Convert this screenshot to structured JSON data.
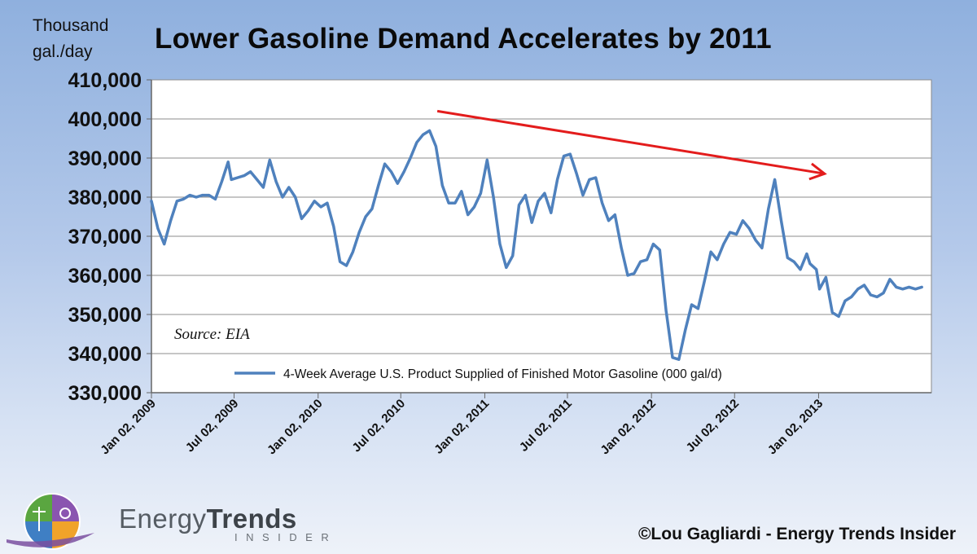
{
  "chart_data": {
    "type": "line",
    "title": "Lower Gasoline  Demand  Accelerates by 2011",
    "ylabel_lines": [
      "Thousand",
      "gal./day"
    ],
    "xlabel": "",
    "ylim": [
      330000,
      410000
    ],
    "yticks": [
      "410,000",
      "400,000",
      "390,000",
      "380,000",
      "370,000",
      "360,000",
      "350,000",
      "340,000",
      "330,000"
    ],
    "ytick_values": [
      410000,
      400000,
      390000,
      380000,
      370000,
      360000,
      350000,
      340000,
      330000
    ],
    "x_start": "2009-01-02",
    "x_end": "2013-09-06",
    "xticks": [
      "Jan 02, 2009",
      "Jul 02, 2009",
      "Jan 02, 2010",
      "Jul 02, 2010",
      "Jan 02, 2011",
      "Jul 02, 2011",
      "Jan 02, 2012",
      "Jul 02, 2012",
      "Jan 02, 2013"
    ],
    "xtick_dates": [
      "2009-01-02",
      "2009-07-02",
      "2010-01-02",
      "2010-07-02",
      "2011-01-02",
      "2011-07-02",
      "2012-01-02",
      "2012-07-02",
      "2013-01-02"
    ],
    "grid": true,
    "legend": "bottom-center, inside plot",
    "annotation": "Source: EIA",
    "trend_arrow": {
      "color": "#e31c1c",
      "from": {
        "x": "2010-09-20",
        "y": 402000
      },
      "to": {
        "x": "2013-01-15",
        "y": 386000
      }
    },
    "series": [
      {
        "name": "4-Week Average U.S. Product Supplied of Finished Motor Gasoline  (000 gal/d)",
        "color": "#4f81bd",
        "points": [
          [
            "2009-01-02",
            379000
          ],
          [
            "2009-01-16",
            372000
          ],
          [
            "2009-01-30",
            368000
          ],
          [
            "2009-02-13",
            374000
          ],
          [
            "2009-02-27",
            379000
          ],
          [
            "2009-03-13",
            379500
          ],
          [
            "2009-03-27",
            380500
          ],
          [
            "2009-04-10",
            380000
          ],
          [
            "2009-04-24",
            380500
          ],
          [
            "2009-05-08",
            380500
          ],
          [
            "2009-05-22",
            379500
          ],
          [
            "2009-06-05",
            384000
          ],
          [
            "2009-06-19",
            389000
          ],
          [
            "2009-06-26",
            384500
          ],
          [
            "2009-07-10",
            385000
          ],
          [
            "2009-07-24",
            385500
          ],
          [
            "2009-08-07",
            386500
          ],
          [
            "2009-08-21",
            384500
          ],
          [
            "2009-09-04",
            382500
          ],
          [
            "2009-09-18",
            389500
          ],
          [
            "2009-10-02",
            384000
          ],
          [
            "2009-10-16",
            380000
          ],
          [
            "2009-10-30",
            382500
          ],
          [
            "2009-11-13",
            380000
          ],
          [
            "2009-11-27",
            374500
          ],
          [
            "2009-12-11",
            376500
          ],
          [
            "2009-12-25",
            379000
          ],
          [
            "2010-01-08",
            377500
          ],
          [
            "2010-01-22",
            378500
          ],
          [
            "2010-02-05",
            372500
          ],
          [
            "2010-02-19",
            363500
          ],
          [
            "2010-03-05",
            362500
          ],
          [
            "2010-03-19",
            366000
          ],
          [
            "2010-04-02",
            371000
          ],
          [
            "2010-04-16",
            375000
          ],
          [
            "2010-04-30",
            377000
          ],
          [
            "2010-05-14",
            383000
          ],
          [
            "2010-05-28",
            388500
          ],
          [
            "2010-06-11",
            386500
          ],
          [
            "2010-06-25",
            383500
          ],
          [
            "2010-07-09",
            386500
          ],
          [
            "2010-07-23",
            390000
          ],
          [
            "2010-08-06",
            394000
          ],
          [
            "2010-08-20",
            396000
          ],
          [
            "2010-09-03",
            397000
          ],
          [
            "2010-09-17",
            393000
          ],
          [
            "2010-10-01",
            383000
          ],
          [
            "2010-10-15",
            378500
          ],
          [
            "2010-10-29",
            378500
          ],
          [
            "2010-11-12",
            381500
          ],
          [
            "2010-11-26",
            375500
          ],
          [
            "2010-12-10",
            377500
          ],
          [
            "2010-12-24",
            381000
          ],
          [
            "2011-01-07",
            389500
          ],
          [
            "2011-01-21",
            380000
          ],
          [
            "2011-02-04",
            368000
          ],
          [
            "2011-02-18",
            362000
          ],
          [
            "2011-03-04",
            365000
          ],
          [
            "2011-03-18",
            378000
          ],
          [
            "2011-04-01",
            380500
          ],
          [
            "2011-04-15",
            373500
          ],
          [
            "2011-04-29",
            379000
          ],
          [
            "2011-05-13",
            381000
          ],
          [
            "2011-05-27",
            376000
          ],
          [
            "2011-06-10",
            384500
          ],
          [
            "2011-06-24",
            390500
          ],
          [
            "2011-07-08",
            391000
          ],
          [
            "2011-07-22",
            386000
          ],
          [
            "2011-08-05",
            380500
          ],
          [
            "2011-08-19",
            384500
          ],
          [
            "2011-09-02",
            385000
          ],
          [
            "2011-09-16",
            378500
          ],
          [
            "2011-09-30",
            374000
          ],
          [
            "2011-10-14",
            375500
          ],
          [
            "2011-10-28",
            367000
          ],
          [
            "2011-11-11",
            360000
          ],
          [
            "2011-11-25",
            360500
          ],
          [
            "2011-12-09",
            363500
          ],
          [
            "2011-12-23",
            364000
          ],
          [
            "2012-01-06",
            368000
          ],
          [
            "2012-01-20",
            366500
          ],
          [
            "2012-02-03",
            351000
          ],
          [
            "2012-02-17",
            339000
          ],
          [
            "2012-03-02",
            338500
          ],
          [
            "2012-03-16",
            346000
          ],
          [
            "2012-03-30",
            352500
          ],
          [
            "2012-04-13",
            351500
          ],
          [
            "2012-04-27",
            358500
          ],
          [
            "2012-05-11",
            366000
          ],
          [
            "2012-05-25",
            364000
          ],
          [
            "2012-06-08",
            368000
          ],
          [
            "2012-06-22",
            371000
          ],
          [
            "2012-07-06",
            370500
          ],
          [
            "2012-07-20",
            374000
          ],
          [
            "2012-08-03",
            372000
          ],
          [
            "2012-08-17",
            369000
          ],
          [
            "2012-08-31",
            367000
          ],
          [
            "2012-09-14",
            377000
          ],
          [
            "2012-09-28",
            384500
          ],
          [
            "2012-10-12",
            374000
          ],
          [
            "2012-10-26",
            364500
          ],
          [
            "2012-11-09",
            363500
          ],
          [
            "2012-11-23",
            361500
          ],
          [
            "2012-12-07",
            365500
          ],
          [
            "2012-12-14",
            363000
          ],
          [
            "2012-12-28",
            361500
          ],
          [
            "2013-01-04",
            356500
          ],
          [
            "2013-01-18",
            359500
          ],
          [
            "2013-02-01",
            350500
          ],
          [
            "2013-02-15",
            349500
          ],
          [
            "2013-03-01",
            353500
          ],
          [
            "2013-03-15",
            354500
          ],
          [
            "2013-03-29",
            356500
          ],
          [
            "2013-04-12",
            357500
          ],
          [
            "2013-04-26",
            355000
          ],
          [
            "2013-05-10",
            354500
          ],
          [
            "2013-05-24",
            355500
          ],
          [
            "2013-06-07",
            359000
          ],
          [
            "2013-06-21",
            357000
          ],
          [
            "2013-07-05",
            356500
          ],
          [
            "2013-07-19",
            357000
          ],
          [
            "2013-08-02",
            356500
          ],
          [
            "2013-08-16",
            357000
          ]
        ]
      }
    ]
  },
  "brand": {
    "word_regular": "Energy",
    "word_bold": "Trends",
    "subword": "INSIDER"
  },
  "copyright": "©Lou Gagliardi - Energy Trends Insider"
}
